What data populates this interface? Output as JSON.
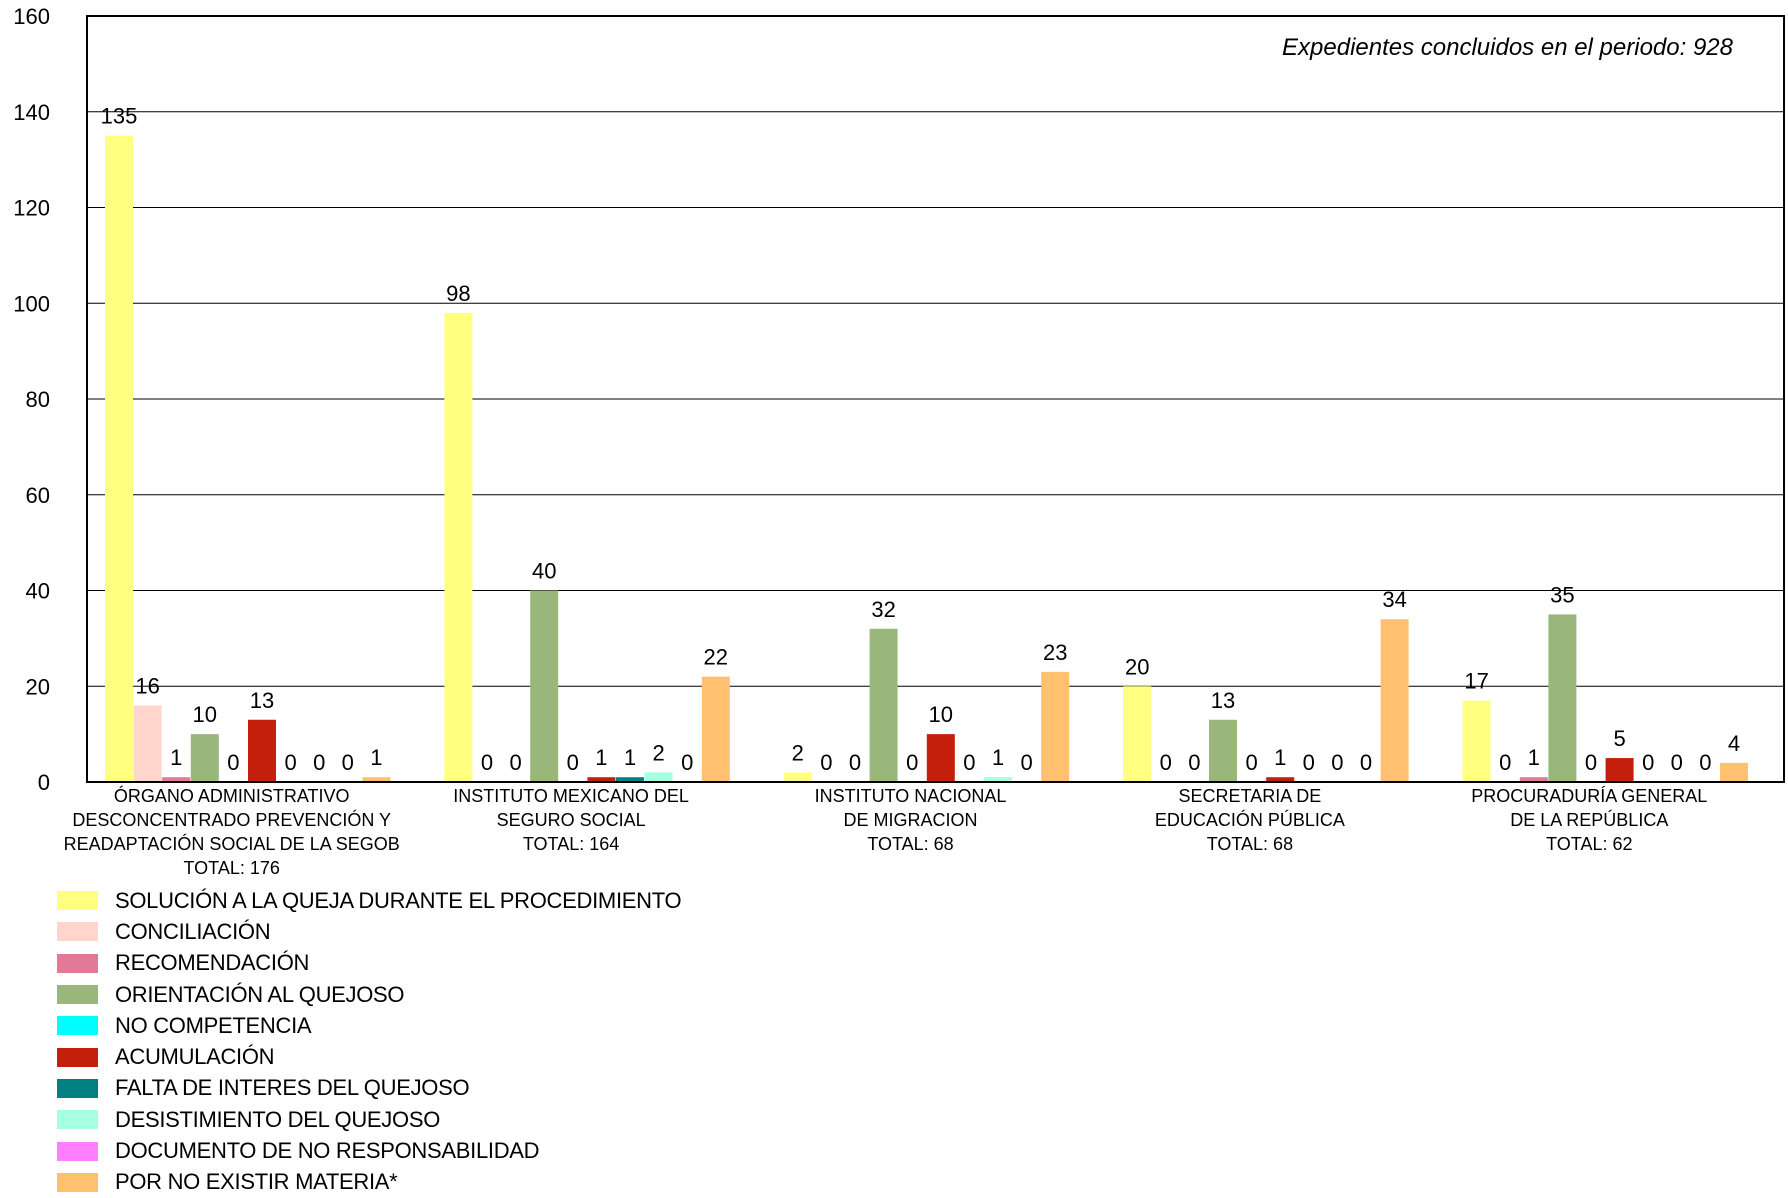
{
  "chart_data": {
    "type": "bar",
    "annotation": "Expedientes concluidos en el periodo:  928",
    "ylim": [
      0,
      160
    ],
    "yticks": [
      0,
      20,
      40,
      60,
      80,
      100,
      120,
      140,
      160
    ],
    "grid": true,
    "categories": [
      {
        "lines": [
          "ÓRGANO ADMINISTRATIVO",
          "DESCONCENTRADO PREVENCIÓN Y",
          "READAPTACIÓN SOCIAL DE LA SEGOB",
          "TOTAL:  176"
        ]
      },
      {
        "lines": [
          "INSTITUTO MEXICANO DEL",
          "SEGURO SOCIAL",
          "TOTAL:  164"
        ]
      },
      {
        "lines": [
          "INSTITUTO NACIONAL",
          "DE MIGRACION",
          "TOTAL:  68"
        ]
      },
      {
        "lines": [
          "SECRETARIA DE",
          "EDUCACIÓN PÚBLICA",
          "TOTAL:  68"
        ]
      },
      {
        "lines": [
          "PROCURADURÍA GENERAL",
          "DE LA REPÚBLICA",
          "TOTAL:  62"
        ]
      }
    ],
    "series": [
      {
        "name": "SOLUCIÓN A LA QUEJA DURANTE EL PROCEDIMIENTO",
        "color": "#FFFF80",
        "values": [
          135,
          98,
          2,
          20,
          17
        ]
      },
      {
        "name": "CONCILIACIÓN",
        "color": "#FFD5CC",
        "values": [
          16,
          0,
          0,
          0,
          0
        ]
      },
      {
        "name": "RECOMENDACIÓN",
        "color": "#E07A96",
        "values": [
          1,
          0,
          0,
          0,
          1
        ]
      },
      {
        "name": "ORIENTACIÓN AL QUEJOSO",
        "color": "#99B77B",
        "values": [
          10,
          40,
          32,
          13,
          35
        ]
      },
      {
        "name": "NO COMPETENCIA",
        "color": "#00FFFF",
        "values": [
          0,
          0,
          0,
          0,
          0
        ]
      },
      {
        "name": "ACUMULACIÓN",
        "color": "#C41E0C",
        "values": [
          13,
          1,
          10,
          1,
          5
        ]
      },
      {
        "name": "FALTA DE INTERES DEL QUEJOSO",
        "color": "#00807F",
        "values": [
          0,
          1,
          0,
          0,
          0
        ]
      },
      {
        "name": "DESISTIMIENTO DEL QUEJOSO",
        "color": "#A6FFE0",
        "values": [
          0,
          2,
          1,
          0,
          0
        ]
      },
      {
        "name": "DOCUMENTO DE NO RESPONSABILIDAD",
        "color": "#FF80FF",
        "values": [
          0,
          0,
          0,
          0,
          0
        ]
      },
      {
        "name": "POR NO EXISTIR MATERIA*",
        "color": "#FFC070",
        "values": [
          1,
          22,
          23,
          34,
          4
        ]
      }
    ]
  }
}
